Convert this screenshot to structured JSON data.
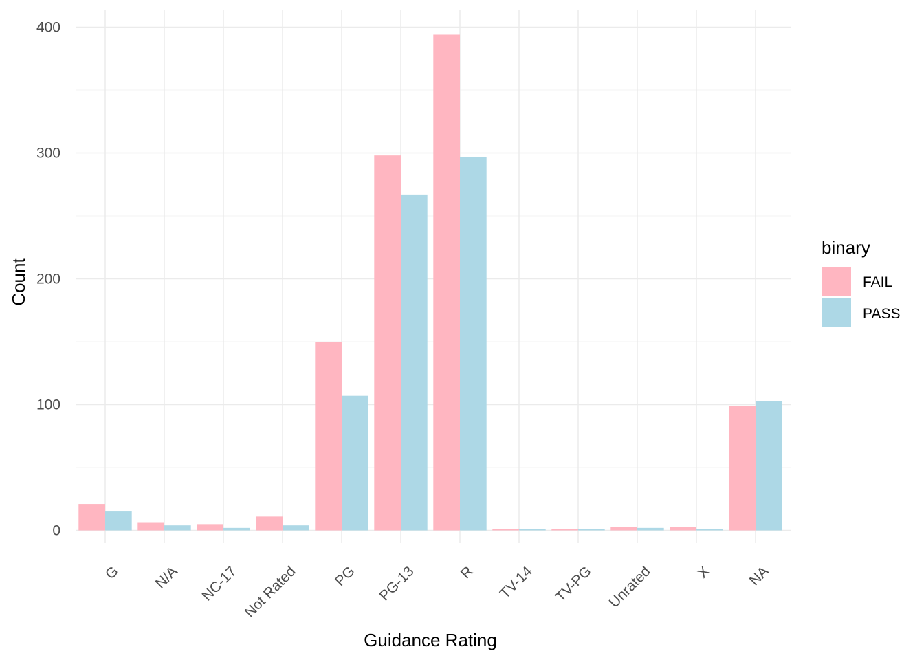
{
  "colors": {
    "fail": "#FFB6C1",
    "pass": "#ADD8E6",
    "grid_major": "#EBEBEB",
    "grid_minor": "#F5F5F5",
    "tick_text": "#4D4D4D"
  },
  "chart_data": {
    "type": "bar",
    "title": "",
    "xlabel": "Guidance Rating",
    "ylabel": "Count",
    "ylim": [
      0,
      415
    ],
    "yticks": [
      0,
      100,
      200,
      300,
      400
    ],
    "ytick_labels": [
      "0",
      "100",
      "200",
      "300",
      "400"
    ],
    "grid": true,
    "legend": {
      "title": "binary",
      "position": "right"
    },
    "categories": [
      "G",
      "N/A",
      "NC-17",
      "Not Rated",
      "PG",
      "PG-13",
      "R",
      "TV-14",
      "TV-PG",
      "Unrated",
      "X",
      "NA"
    ],
    "series": [
      {
        "name": "FAIL",
        "color": "#FFB6C1",
        "values": [
          21,
          6,
          5,
          11,
          150,
          298,
          394,
          1,
          1,
          3,
          3,
          99
        ]
      },
      {
        "name": "PASS",
        "color": "#ADD8E6",
        "values": [
          15,
          4,
          2,
          4,
          107,
          267,
          297,
          1,
          1,
          2,
          1,
          103
        ]
      }
    ]
  }
}
